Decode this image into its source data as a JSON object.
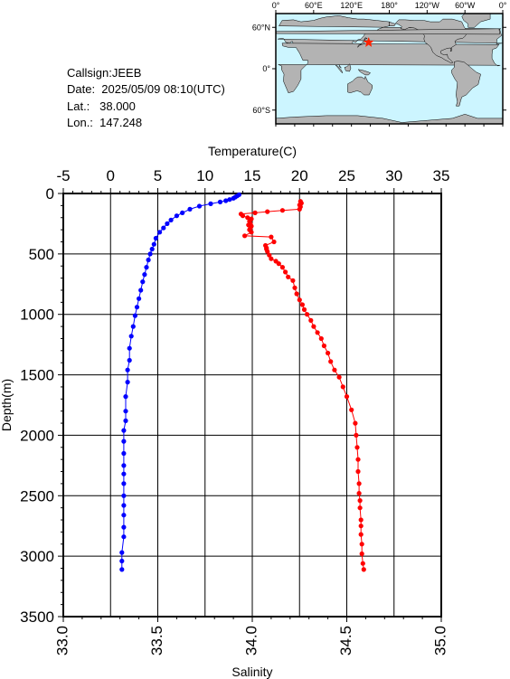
{
  "info": {
    "callsign": "Callsign:JEEB",
    "date": "Date:  2025/05/09 08:10(UTC)",
    "lat": "Lat.:   38.000",
    "lon": "Lon.:  147.248"
  },
  "map": {
    "lon_ticks": [
      "0°",
      "60°E",
      "120°E",
      "180°",
      "120°W",
      "60°W",
      "0°"
    ],
    "lat_ticks": [
      "60°N",
      "0°",
      "60°S"
    ],
    "station_lat": 38.0,
    "station_lon": 147.248,
    "ocean_color": "#ccf5ff",
    "land_color": "#b3b3b3",
    "marker_color": "#ff2200"
  },
  "chart_data": {
    "type": "scatter",
    "ylabel": "Depth(m)",
    "ylim": [
      3500,
      0
    ],
    "yticks": [
      0,
      500,
      1000,
      1500,
      2000,
      2500,
      3000,
      3500
    ],
    "grid": true,
    "temperature_axis": {
      "label": "Temperature(C)",
      "lim": [
        -5,
        35
      ],
      "ticks": [
        -5,
        0,
        5,
        10,
        15,
        20,
        25,
        30,
        35
      ],
      "position": "top"
    },
    "salinity_axis": {
      "label": "Salinity",
      "lim": [
        33.0,
        35.0
      ],
      "ticks": [
        "33.0",
        "33.5",
        "34.0",
        "34.5",
        "35.0"
      ],
      "position": "bottom"
    },
    "series": [
      {
        "quantity": "temperature",
        "color": "#ff0000",
        "points": [
          [
            20.1,
            65
          ],
          [
            20.2,
            80
          ],
          [
            20.0,
            95
          ],
          [
            20.1,
            110
          ],
          [
            20.0,
            130
          ],
          [
            18.2,
            140
          ],
          [
            16.6,
            150
          ],
          [
            15.3,
            160
          ],
          [
            13.8,
            170
          ],
          [
            14.0,
            185
          ],
          [
            14.5,
            200
          ],
          [
            14.9,
            210
          ],
          [
            14.7,
            230
          ],
          [
            14.8,
            250
          ],
          [
            14.6,
            260
          ],
          [
            14.9,
            270
          ],
          [
            14.8,
            285
          ],
          [
            14.7,
            300
          ],
          [
            14.9,
            320
          ],
          [
            14.2,
            350
          ],
          [
            17.0,
            360
          ],
          [
            17.3,
            400
          ],
          [
            16.4,
            430
          ],
          [
            16.5,
            450
          ],
          [
            16.5,
            460
          ],
          [
            16.6,
            480
          ],
          [
            16.8,
            510
          ],
          [
            17.0,
            540
          ],
          [
            17.5,
            560
          ],
          [
            17.8,
            580
          ],
          [
            18.2,
            610
          ],
          [
            18.5,
            650
          ],
          [
            18.8,
            690
          ],
          [
            19.3,
            720
          ],
          [
            19.5,
            780
          ],
          [
            19.7,
            830
          ],
          [
            20.0,
            880
          ],
          [
            20.3,
            920
          ],
          [
            20.5,
            960
          ],
          [
            20.8,
            1000
          ],
          [
            21.2,
            1050
          ],
          [
            21.5,
            1100
          ],
          [
            21.9,
            1150
          ],
          [
            22.3,
            1200
          ],
          [
            22.6,
            1260
          ],
          [
            23.0,
            1320
          ],
          [
            23.3,
            1390
          ],
          [
            23.7,
            1460
          ],
          [
            24.2,
            1520
          ],
          [
            24.6,
            1600
          ],
          [
            25.0,
            1680
          ],
          [
            25.5,
            1790
          ],
          [
            25.9,
            1900
          ],
          [
            26.0,
            2000
          ],
          [
            26.1,
            2100
          ],
          [
            26.2,
            2200
          ],
          [
            26.2,
            2300
          ],
          [
            26.3,
            2400
          ],
          [
            26.3,
            2480
          ],
          [
            26.4,
            2540
          ],
          [
            26.4,
            2600
          ],
          [
            26.5,
            2700
          ],
          [
            26.5,
            2750
          ],
          [
            26.5,
            2820
          ],
          [
            26.6,
            2900
          ],
          [
            26.6,
            2980
          ],
          [
            26.7,
            3060
          ],
          [
            26.8,
            3110
          ]
        ]
      },
      {
        "quantity": "salinity",
        "color": "#0000ff",
        "points": [
          [
            33.93,
            10
          ],
          [
            33.92,
            20
          ],
          [
            33.91,
            30
          ],
          [
            33.9,
            40
          ],
          [
            33.88,
            50
          ],
          [
            33.86,
            60
          ],
          [
            33.83,
            70
          ],
          [
            33.78,
            85
          ],
          [
            33.72,
            105
          ],
          [
            33.67,
            130
          ],
          [
            33.63,
            160
          ],
          [
            33.6,
            185
          ],
          [
            33.57,
            220
          ],
          [
            33.55,
            250
          ],
          [
            33.53,
            285
          ],
          [
            33.51,
            320
          ],
          [
            33.49,
            370
          ],
          [
            33.48,
            420
          ],
          [
            33.47,
            460
          ],
          [
            33.46,
            500
          ],
          [
            33.45,
            550
          ],
          [
            33.44,
            610
          ],
          [
            33.43,
            670
          ],
          [
            33.42,
            730
          ],
          [
            33.41,
            800
          ],
          [
            33.4,
            870
          ],
          [
            33.39,
            940
          ],
          [
            33.38,
            1010
          ],
          [
            33.37,
            1100
          ],
          [
            33.36,
            1180
          ],
          [
            33.35,
            1280
          ],
          [
            33.35,
            1380
          ],
          [
            33.34,
            1460
          ],
          [
            33.34,
            1560
          ],
          [
            33.33,
            1680
          ],
          [
            33.33,
            1800
          ],
          [
            33.33,
            1880
          ],
          [
            33.32,
            1960
          ],
          [
            33.32,
            2050
          ],
          [
            33.32,
            2150
          ],
          [
            33.32,
            2250
          ],
          [
            33.32,
            2320
          ],
          [
            33.32,
            2400
          ],
          [
            33.32,
            2500
          ],
          [
            33.32,
            2580
          ],
          [
            33.32,
            2660
          ],
          [
            33.32,
            2760
          ],
          [
            33.32,
            2840
          ],
          [
            33.31,
            2970
          ],
          [
            33.31,
            3040
          ],
          [
            33.31,
            3110
          ]
        ]
      }
    ]
  }
}
